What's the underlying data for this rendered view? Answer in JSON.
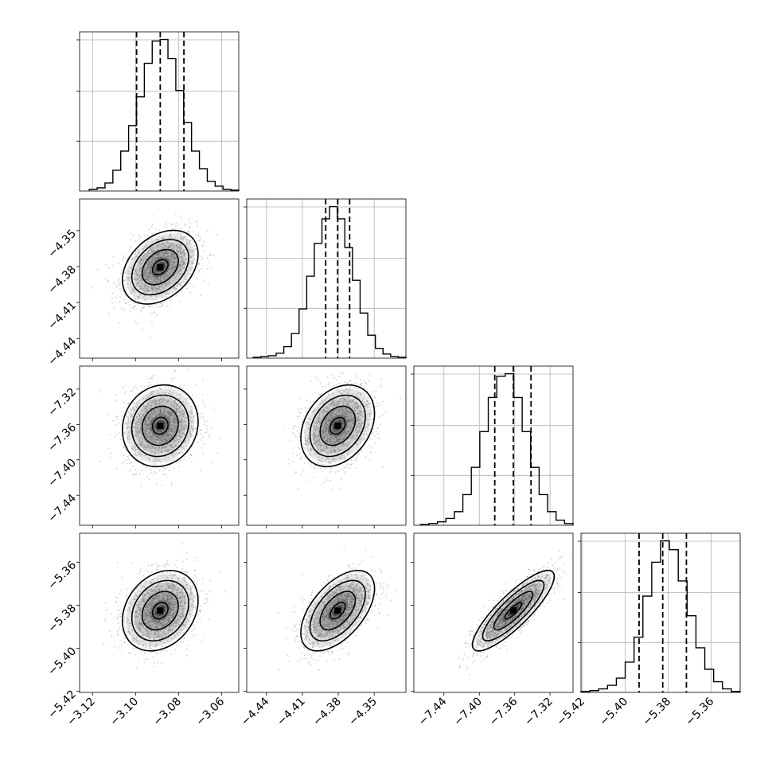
{
  "chart_data": {
    "type": "corner",
    "parameters": [
      {
        "index": 0,
        "range": [
          -3.126,
          -3.052
        ],
        "ticks": [
          "−3.12",
          "−3.10",
          "−3.08",
          "−3.06"
        ],
        "tick_values": [
          -3.12,
          -3.1,
          -3.08,
          -3.06
        ],
        "quantiles": [
          -3.0995,
          -3.0885,
          -3.0775
        ]
      },
      {
        "index": 1,
        "range": [
          -4.4565,
          -4.3235
        ],
        "ticks": [
          "−4.44",
          "−4.41",
          "−4.38",
          "−4.35"
        ],
        "tick_values": [
          -4.44,
          -4.41,
          -4.38,
          -4.35
        ],
        "quantiles": [
          -4.3905,
          -4.3805,
          -4.3705
        ]
      },
      {
        "index": 2,
        "range": [
          -7.474,
          -7.294
        ],
        "ticks": [
          "−7.44",
          "−7.40",
          "−7.36",
          "−7.32"
        ],
        "tick_values": [
          -7.44,
          -7.4,
          -7.36,
          -7.32
        ],
        "quantiles": [
          -7.3825,
          -7.3615,
          -7.3415
        ]
      },
      {
        "index": 3,
        "range": [
          -5.4205,
          -5.3465
        ],
        "ticks": [
          "−5.42",
          "−5.40",
          "−5.38",
          "−5.36"
        ],
        "tick_values": [
          -5.42,
          -5.4,
          -5.38,
          -5.36
        ],
        "quantiles": [
          -5.3935,
          -5.3825,
          -5.3715
        ]
      }
    ],
    "histograms": [
      {
        "param": 0,
        "counts": [
          2,
          4,
          10,
          26,
          50,
          82,
          118,
          160,
          188,
          190,
          166,
          126,
          86,
          50,
          28,
          12,
          6,
          2,
          1
        ],
        "bins": [
          -3.1215,
          -3.052
        ]
      },
      {
        "param": 1,
        "counts": [
          1,
          2,
          3,
          6,
          14,
          30,
          60,
          100,
          140,
          170,
          185,
          170,
          135,
          95,
          55,
          28,
          12,
          5,
          2,
          1
        ],
        "bins": [
          -4.451,
          -4.3235
        ]
      },
      {
        "param": 2,
        "counts": [
          1,
          2,
          4,
          8,
          16,
          36,
          68,
          110,
          150,
          175,
          178,
          150,
          110,
          68,
          36,
          16,
          6,
          2
        ],
        "bins": [
          -7.4665,
          -7.294
        ]
      },
      {
        "param": 3,
        "counts": [
          1,
          2,
          4,
          8,
          16,
          34,
          62,
          108,
          146,
          170,
          160,
          125,
          86,
          50,
          26,
          12,
          4,
          1
        ],
        "bins": [
          -5.4205,
          -5.3465
        ]
      }
    ],
    "pairs": [
      {
        "x": 1,
        "y": 0,
        "center": [
          -3.0885,
          -4.3805
        ],
        "sigma": [
          0.008,
          0.014
        ],
        "rho": 0.35
      },
      {
        "x": 2,
        "y": 0,
        "center": [
          -3.0885,
          -7.3615
        ],
        "sigma": [
          0.008,
          0.021
        ],
        "rho": 0.1
      },
      {
        "x": 2,
        "y": 1,
        "center": [
          -4.3805,
          -7.3615
        ],
        "sigma": [
          0.014,
          0.021
        ],
        "rho": 0.3
      },
      {
        "x": 3,
        "y": 0,
        "center": [
          -3.0885,
          -5.3825
        ],
        "sigma": [
          0.008,
          0.0085
        ],
        "rho": 0.25
      },
      {
        "x": 3,
        "y": 1,
        "center": [
          -4.3805,
          -5.3825
        ],
        "sigma": [
          0.014,
          0.0085
        ],
        "rho": 0.55
      },
      {
        "x": 3,
        "y": 2,
        "center": [
          -7.3615,
          -5.3825
        ],
        "sigma": [
          0.021,
          0.0085
        ],
        "rho": 0.85
      }
    ],
    "grid": true,
    "colors": {
      "line": "#000000",
      "scatter": "#999999",
      "density": "#000000",
      "grid": "#b0b0b0"
    }
  }
}
